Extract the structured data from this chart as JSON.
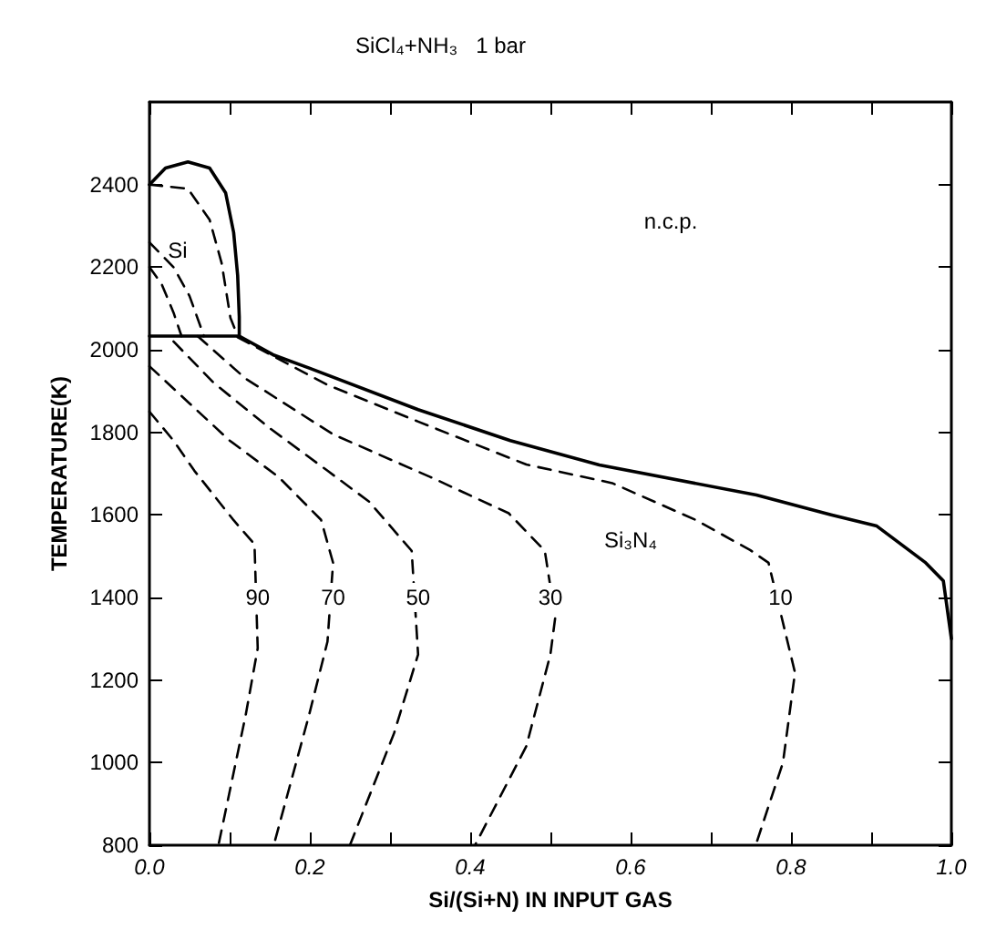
{
  "chart_data": {
    "type": "line",
    "title": "SiCl₄+NH₃   1 bar",
    "xlabel": "Si/(Si+N) IN INPUT GAS",
    "ylabel": "TEMPERATURE(K)",
    "xlim": [
      0,
      1
    ],
    "ylim": [
      800,
      2600
    ],
    "xticks": [
      {
        "value": 0,
        "label": "0.0"
      },
      {
        "value": 0.1,
        "label": null
      },
      0.2,
      {
        "value": 0.3,
        "label": null
      },
      0.4,
      {
        "value": 0.5,
        "label": null
      },
      0.6,
      {
        "value": 0.7,
        "label": null
      },
      0.8,
      {
        "value": 0.9,
        "label": null
      },
      {
        "value": 1,
        "label": "1.0"
      }
    ],
    "yticks": [
      800,
      1000,
      1200,
      1400,
      1600,
      1800,
      2000,
      2200,
      2400
    ],
    "grid": false,
    "marker": "none",
    "series": [
      {
        "color": "#000000",
        "line_style": "solid",
        "x": [
          0,
          0.02,
          0.048,
          0.075,
          0.095,
          0.105,
          0.11,
          0.112,
          0.112,
          0
        ],
        "values": [
          2400,
          2440,
          2455,
          2440,
          2380,
          2284,
          2180,
          2080,
          2033,
          2033
        ]
      },
      {
        "color": "#000000",
        "line_style": "solid",
        "x": [
          0.112,
          0.154,
          0.2,
          0.335,
          0.45,
          0.561,
          0.757,
          0.85,
          0.907,
          0.968,
          0.99,
          1
        ],
        "values": [
          2033,
          1988,
          1955,
          1855,
          1780,
          1721,
          1648,
          1600,
          1573,
          1484,
          1440,
          1300
        ]
      },
      {
        "color": "#000000",
        "line_style": "dashed",
        "x": [
          0,
          0.048,
          0.075,
          0.09,
          0.101,
          0.11
        ],
        "values": [
          2400,
          2390,
          2315,
          2210,
          2077,
          2033
        ]
      },
      {
        "color": "#000000",
        "line_style": "dashed",
        "x": [
          0,
          0.03,
          0.05,
          0.068
        ],
        "values": [
          2260,
          2200,
          2130,
          2033
        ]
      },
      {
        "color": "#000000",
        "line_style": "dashed",
        "x": [
          0,
          0.015,
          0.03,
          0.04
        ],
        "values": [
          2200,
          2160,
          2090,
          2033
        ]
      },
      {
        "color": "#000000",
        "line_style": "dashed",
        "x": [
          0.11,
          0.222,
          0.335,
          0.47,
          0.577,
          0.681,
          0.749,
          0.772,
          0.805,
          0.79,
          0.756
        ],
        "values": [
          2030,
          1915,
          1826,
          1722,
          1677,
          1588,
          1515,
          1484,
          1218,
          1000,
          800
        ]
      },
      {
        "color": "#000000",
        "line_style": "dashed",
        "x": [
          0.06,
          0.12,
          0.229,
          0.35,
          0.448,
          0.493,
          0.506,
          0.5,
          0.47,
          0.406
        ],
        "values": [
          2033,
          1930,
          1795,
          1692,
          1604,
          1513,
          1351,
          1262,
          1040,
          800
        ]
      },
      {
        "color": "#000000",
        "line_style": "dashed",
        "x": [
          0.03,
          0.08,
          0.15,
          0.222,
          0.274,
          0.327,
          0.335,
          0.305,
          0.25
        ],
        "values": [
          2020,
          1920,
          1810,
          1707,
          1632,
          1513,
          1262,
          1071,
          800
        ]
      },
      {
        "color": "#000000",
        "line_style": "dashed",
        "x": [
          0,
          0.05,
          0.1,
          0.161,
          0.214,
          0.229,
          0.222,
          0.199,
          0.155
        ],
        "values": [
          1960,
          1870,
          1780,
          1692,
          1588,
          1484,
          1293,
          1115,
          800
        ]
      },
      {
        "color": "#000000",
        "line_style": "dashed",
        "x": [
          0,
          0.03,
          0.056,
          0.105,
          0.131,
          0.135,
          0.12,
          0.086
        ],
        "values": [
          1850,
          1780,
          1707,
          1587,
          1529,
          1277,
          1115,
          800
        ]
      }
    ],
    "annotations": [
      {
        "text": "90",
        "x": 0.135,
        "y": 1400
      },
      {
        "text": "70",
        "x": 0.229,
        "y": 1400
      },
      {
        "text": "50",
        "x": 0.335,
        "y": 1400
      },
      {
        "text": "30",
        "x": 0.5,
        "y": 1400
      },
      {
        "text": "10",
        "x": 0.787,
        "y": 1400
      },
      "Si₃N₄",
      "Si",
      "n.c.p."
    ]
  }
}
